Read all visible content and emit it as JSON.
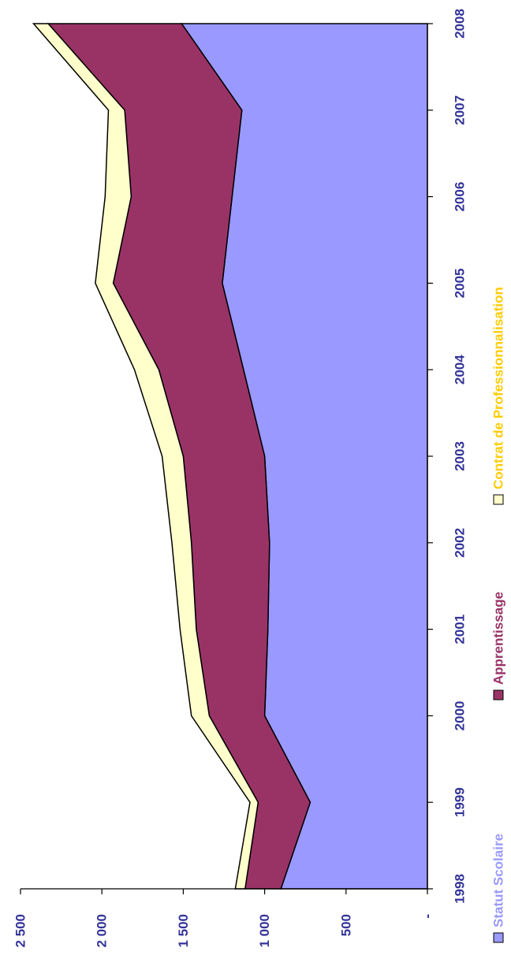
{
  "chart_data": {
    "type": "area",
    "stacked": true,
    "orientation": "rotated-90",
    "categories": [
      "1998",
      "1999",
      "2000",
      "2001",
      "2002",
      "2003",
      "2004",
      "2005",
      "2006",
      "2007",
      "2008"
    ],
    "series": [
      {
        "name": "Statut Scolaire",
        "color": "#9999ff",
        "values": [
          900,
          720,
          1000,
          980,
          970,
          1000,
          1130,
          1260,
          1200,
          1140,
          1510
        ]
      },
      {
        "name": "Apprentissage",
        "color": "#993366",
        "values": [
          220,
          320,
          340,
          440,
          480,
          500,
          520,
          670,
          620,
          720,
          820
        ]
      },
      {
        "name": "Contrat de Professionnalisation",
        "color": "#ffffcc",
        "legend_text_color": "#ffcc00",
        "values": [
          60,
          50,
          110,
          100,
          120,
          130,
          150,
          110,
          160,
          100,
          90
        ]
      }
    ],
    "ylim": [
      0,
      2500
    ],
    "y_ticks": [
      "-",
      "500",
      "1 000",
      "1 500",
      "2 000",
      "2 500"
    ],
    "axis_text_color": "#333399",
    "grid": false,
    "legend_position": "bottom"
  }
}
